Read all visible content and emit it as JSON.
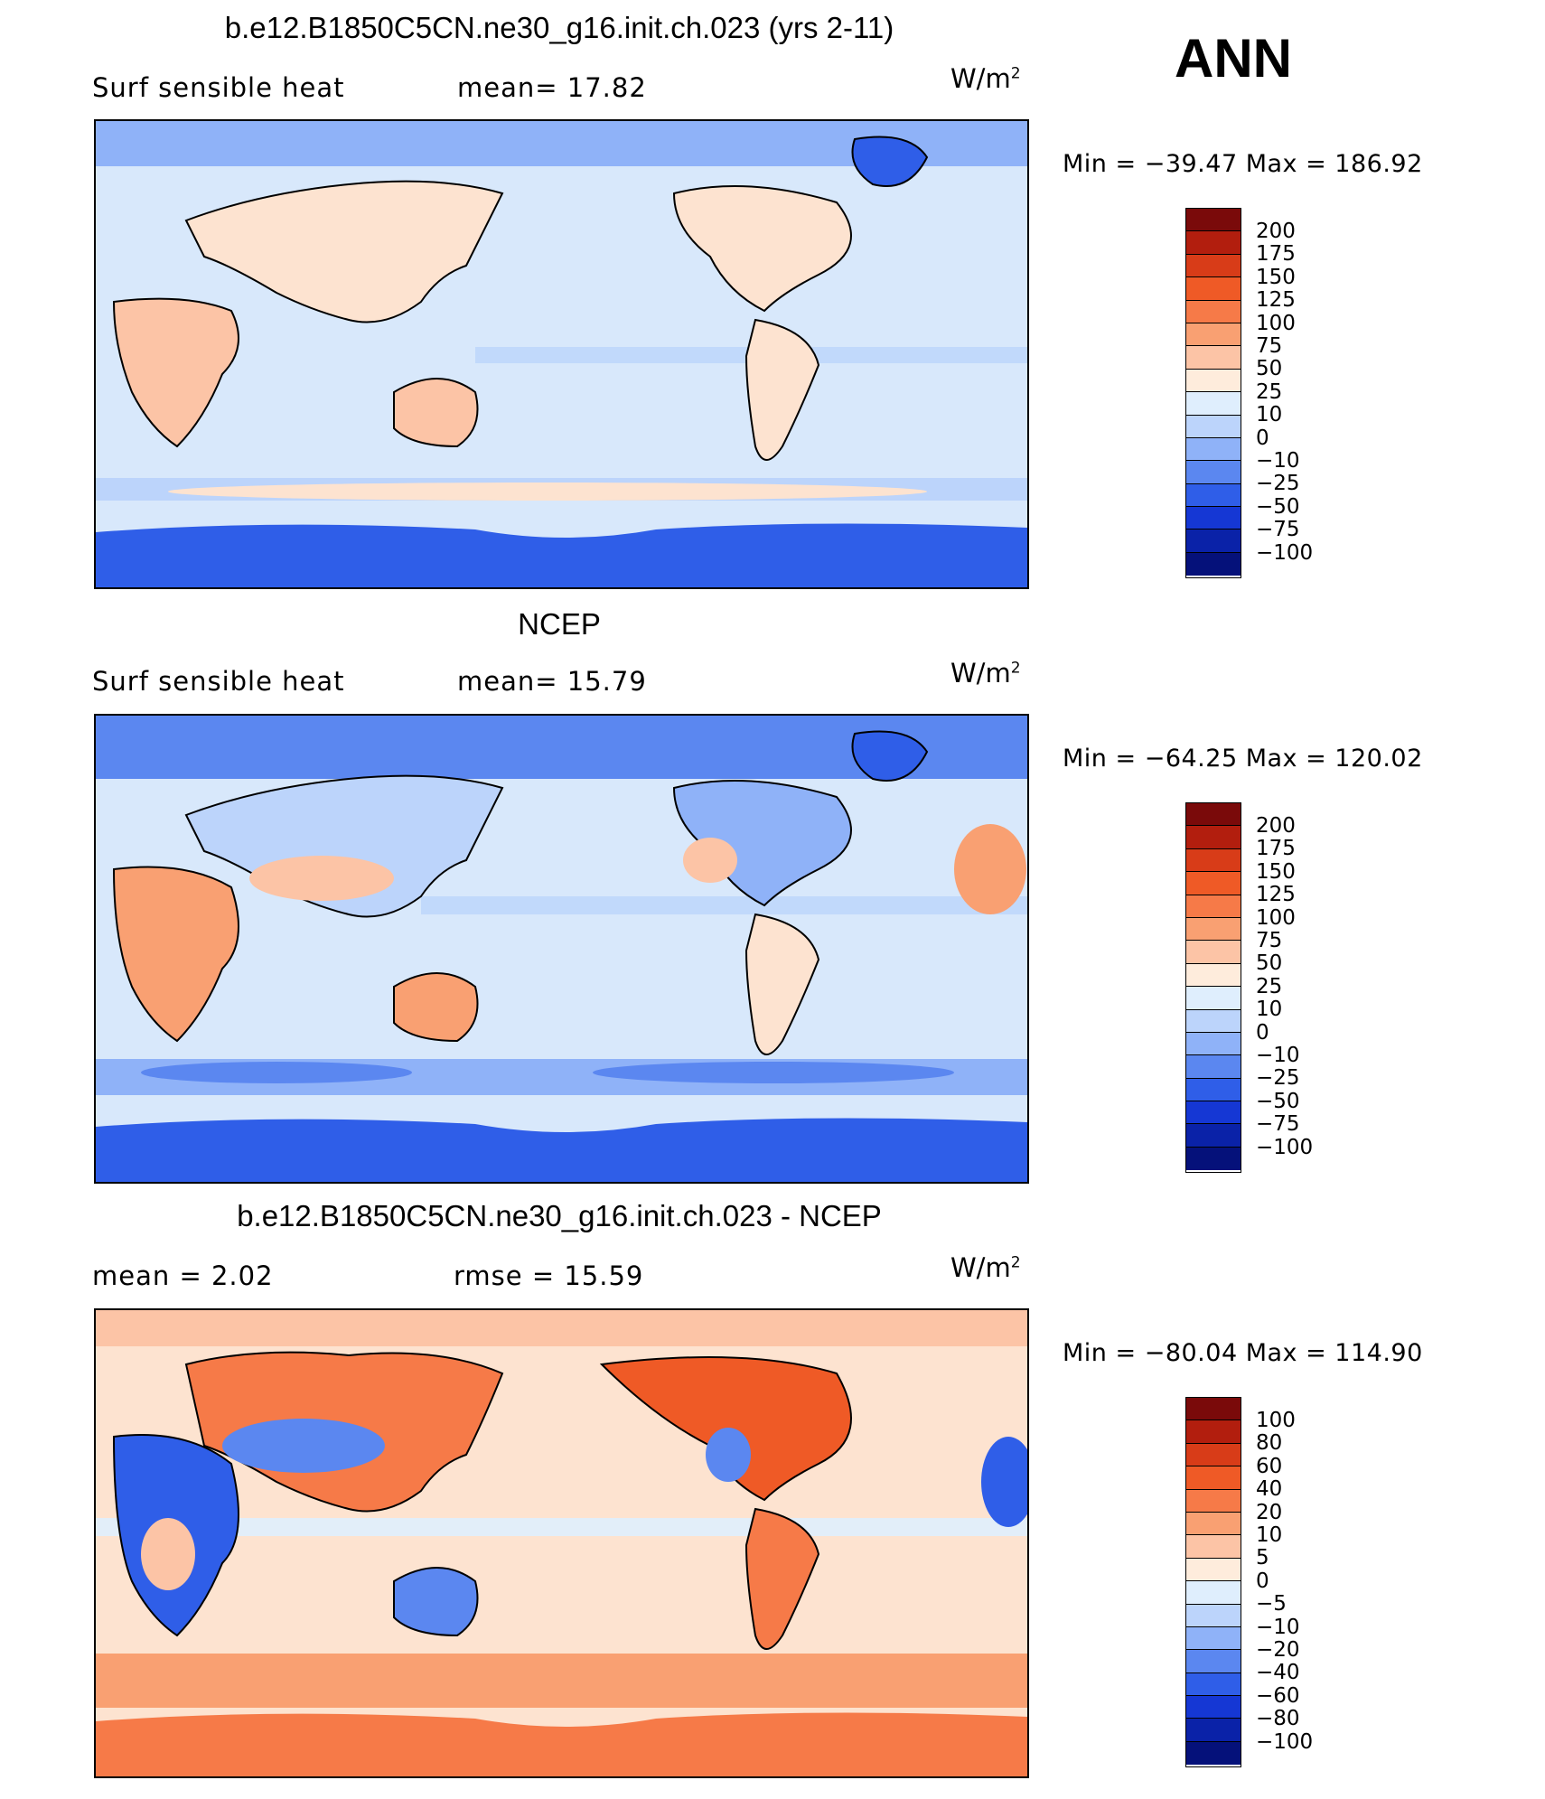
{
  "season": "ANN",
  "palette": {
    "deep_blue": "#0a1f8f",
    "blue": "#2a5de8",
    "mid_blue": "#6f97f5",
    "light_blue": "#b7cff8",
    "pale_blue": "#d8e8fb",
    "pale_orange": "#fde3d0",
    "light_orange": "#fbb89a",
    "orange": "#f27b52",
    "deep_orange": "#e0532a",
    "land_outline": "#000000"
  },
  "colorbar_colors": [
    "#7a0a0a",
    "#b21e0e",
    "#d83c18",
    "#ef5a26",
    "#f67a48",
    "#f9a072",
    "#fcc4a6",
    "#feecdc",
    "#dfeefd",
    "#bcd4fb",
    "#8fb2f8",
    "#5b87f0",
    "#2f5ee8",
    "#1537d4",
    "#0a22a8",
    "#05117a"
  ],
  "panels": [
    {
      "title": "b.e12.B1850C5CN.ne30_g16.init.ch.023 (yrs 2-11)",
      "left_label": "Surf  sensible  heat",
      "mid_label": "mean=   17.82",
      "units": "W/m",
      "units_sup": "2",
      "minmax": "Min  =  −39.47  Max  =  186.92",
      "colorbar_labels": [
        "200",
        "175",
        "150",
        "125",
        "100",
        "75",
        "50",
        "25",
        "10",
        "0",
        "−10",
        "−25",
        "−50",
        "−75",
        "−100"
      ]
    },
    {
      "title": "NCEP",
      "left_label": "Surf  sensible  heat",
      "mid_label": "mean=   15.79",
      "units": "W/m",
      "units_sup": "2",
      "minmax": "Min  =  −64.25  Max  =  120.02",
      "colorbar_labels": [
        "200",
        "175",
        "150",
        "125",
        "100",
        "75",
        "50",
        "25",
        "10",
        "0",
        "−10",
        "−25",
        "−50",
        "−75",
        "−100"
      ]
    },
    {
      "title": "b.e12.B1850C5CN.ne30_g16.init.ch.023 - NCEP",
      "left_label": "mean  =      2.02",
      "mid_label": "rmse  =    15.59",
      "units": "W/m",
      "units_sup": "2",
      "minmax": "Min  =  −80.04  Max  =  114.90",
      "colorbar_labels": [
        "100",
        "80",
        "60",
        "40",
        "20",
        "10",
        "5",
        "0",
        "−5",
        "−10",
        "−20",
        "−40",
        "−60",
        "−80",
        "−100"
      ]
    }
  ]
}
